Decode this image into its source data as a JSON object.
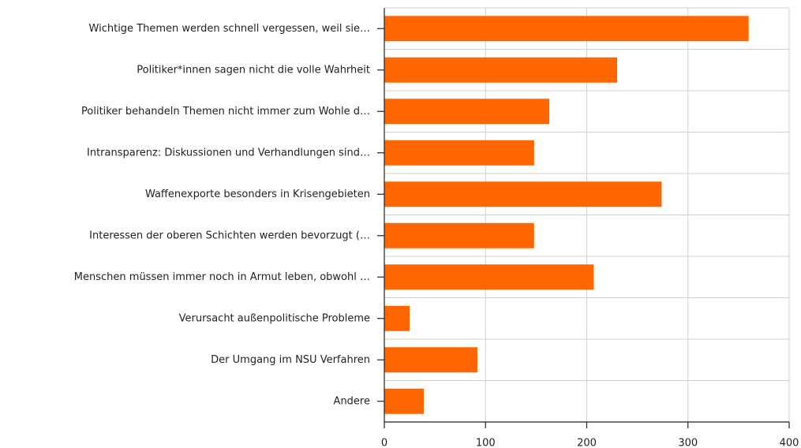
{
  "chart_data": {
    "type": "bar",
    "orientation": "horizontal",
    "categories": [
      "Wichtige Themen werden schnell vergessen, weil sie…",
      "Politiker*innen sagen nicht die volle Wahrheit",
      "Politiker behandeln Themen nicht immer zum Wohle d…",
      "Intransparenz: Diskussionen und Verhandlungen sind…",
      "Waffenexporte besonders in Krisengebieten",
      "Interessen der oberen Schichten werden bevorzugt (…",
      "Menschen müssen immer noch in Armut leben, obwohl …",
      "Verursacht außenpolitische Probleme",
      "Der Umgang im NSU Verfahren",
      "Andere"
    ],
    "values": [
      360,
      230,
      163,
      148,
      274,
      148,
      207,
      25,
      92,
      39
    ],
    "color": "#ff6600",
    "xlim": [
      0,
      400
    ],
    "xticks": [
      0,
      100,
      200,
      300,
      400
    ],
    "grid": true
  }
}
